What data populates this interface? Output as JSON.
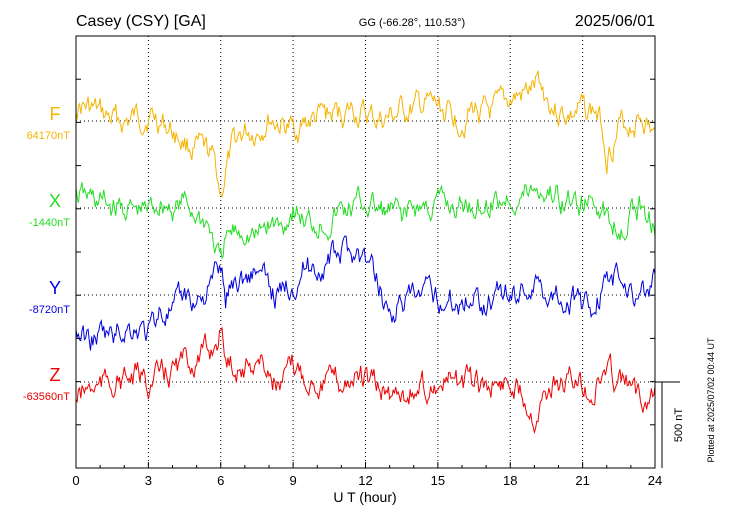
{
  "header": {
    "station": "Casey (CSY)  [GA]",
    "coords": "GG (-66.28°, 110.53°)",
    "date": "2025/06/01"
  },
  "footer": {
    "plotted": "Plotted at 2025/07/02 00:44 UT"
  },
  "scale_label": "500 nT",
  "chart_data": {
    "type": "line",
    "xlabel": "U T (hour)",
    "xlim": [
      0,
      24
    ],
    "xticks": [
      0,
      3,
      6,
      9,
      12,
      15,
      18,
      21,
      24
    ],
    "scale_nT": 500,
    "grid": true,
    "series": [
      {
        "name": "F",
        "baseline_label": "64170nT",
        "baseline_nT": 64170,
        "color": "#f5b400",
        "x": [
          0,
          0.5,
          1,
          1.5,
          2,
          2.5,
          3,
          3.5,
          4,
          4.5,
          5,
          5.5,
          5.8,
          6.0,
          6.2,
          6.5,
          6.8,
          7,
          7.5,
          8,
          8.5,
          9,
          9.5,
          10,
          10.5,
          11,
          11.5,
          12,
          12.5,
          13,
          13.5,
          14,
          14.5,
          15,
          15.5,
          16,
          16.5,
          17,
          17.5,
          18,
          18.5,
          19,
          19.2,
          19.5,
          20,
          20.5,
          21,
          21.5,
          21.8,
          22,
          22.5,
          23,
          23.5,
          24
        ],
        "values": [
          64270,
          64240,
          64200,
          64170,
          64160,
          64180,
          64210,
          64170,
          64110,
          64050,
          64000,
          63960,
          63900,
          63740,
          63880,
          64000,
          64080,
          64100,
          64120,
          64190,
          64150,
          64110,
          64160,
          64180,
          64200,
          64210,
          64230,
          64190,
          64170,
          64180,
          64220,
          64230,
          64250,
          64240,
          64200,
          64190,
          64240,
          64200,
          64210,
          64290,
          64310,
          64350,
          64390,
          64310,
          64230,
          64200,
          64230,
          64230,
          64150,
          63990,
          64130,
          64160,
          64210,
          64050
        ]
      },
      {
        "name": "X",
        "baseline_label": "-1440nT",
        "baseline_nT": -1440,
        "color": "#22dd22",
        "x": [
          0,
          0.5,
          1,
          1.5,
          2,
          2.5,
          3,
          3.5,
          4,
          4.5,
          5,
          5.5,
          6.0,
          6.2,
          6.5,
          7,
          7.5,
          8,
          8.5,
          9,
          9.5,
          10,
          10.5,
          11,
          11.5,
          12,
          12.5,
          13,
          13.5,
          14,
          14.5,
          15,
          15.5,
          16,
          16.5,
          17,
          17.5,
          18,
          18.5,
          19,
          19.5,
          20,
          20.5,
          21,
          21.5,
          21.8,
          22,
          22.5,
          23,
          23.5,
          24
        ],
        "values": [
          -1370,
          -1390,
          -1410,
          -1440,
          -1440,
          -1470,
          -1460,
          -1400,
          -1440,
          -1420,
          -1480,
          -1540,
          -1780,
          -1640,
          -1600,
          -1560,
          -1620,
          -1530,
          -1560,
          -1430,
          -1530,
          -1520,
          -1510,
          -1460,
          -1450,
          -1410,
          -1460,
          -1480,
          -1490,
          -1450,
          -1440,
          -1420,
          -1430,
          -1440,
          -1410,
          -1410,
          -1400,
          -1370,
          -1370,
          -1330,
          -1340,
          -1380,
          -1420,
          -1420,
          -1430,
          -1400,
          -1500,
          -1520,
          -1470,
          -1430,
          -1520
        ]
      },
      {
        "name": "Y",
        "baseline_label": "-8720nT",
        "baseline_nT": -8720,
        "color": "#0000dd",
        "x": [
          0,
          0.5,
          1,
          1.5,
          2,
          2.5,
          3,
          3.5,
          4,
          4.5,
          5,
          5.5,
          6.0,
          6.2,
          6.5,
          7,
          7.5,
          8,
          8.5,
          9,
          9.5,
          10,
          10.5,
          11,
          11.5,
          12,
          12.5,
          13,
          13.5,
          14,
          14.5,
          15,
          15.5,
          16,
          16.5,
          17,
          17.5,
          18,
          18.5,
          19,
          19.5,
          20,
          20.5,
          21,
          21.5,
          22,
          22.5,
          23,
          23.5,
          24
        ],
        "values": [
          -8940,
          -8980,
          -8960,
          -8970,
          -8910,
          -8900,
          -8950,
          -8800,
          -8840,
          -8740,
          -8750,
          -8680,
          -8560,
          -8750,
          -8640,
          -8620,
          -8560,
          -8700,
          -8720,
          -8620,
          -8550,
          -8560,
          -8520,
          -8480,
          -8450,
          -8520,
          -8640,
          -8820,
          -8760,
          -8760,
          -8740,
          -8730,
          -8750,
          -8760,
          -8710,
          -8750,
          -8700,
          -8720,
          -8680,
          -8650,
          -8700,
          -8700,
          -8750,
          -8800,
          -8760,
          -8650,
          -8620,
          -8690,
          -8710,
          -8640
        ]
      },
      {
        "name": "Z",
        "baseline_label": "-63560nT",
        "baseline_nT": -63560,
        "color": "#ee0000",
        "x": [
          0,
          0.5,
          1,
          1.5,
          2,
          2.5,
          3,
          3.5,
          4,
          4.5,
          5,
          5.5,
          6.0,
          6.2,
          6.5,
          7,
          7.5,
          8,
          8.5,
          9,
          9.5,
          10,
          10.5,
          11,
          11.5,
          12,
          12.5,
          13,
          13.5,
          14,
          14.5,
          15,
          15.5,
          16,
          16.5,
          17,
          17.5,
          18,
          18.5,
          19,
          19.5,
          20,
          20.5,
          21,
          21.5,
          22,
          22.5,
          23,
          23.5,
          24
        ],
        "values": [
          -63650,
          -63600,
          -63590,
          -63550,
          -63560,
          -63540,
          -63560,
          -63540,
          -63500,
          -63450,
          -63420,
          -63400,
          -63260,
          -63420,
          -63450,
          -63480,
          -63420,
          -63500,
          -63600,
          -63480,
          -63520,
          -63540,
          -63550,
          -63570,
          -63520,
          -63560,
          -63600,
          -63640,
          -63600,
          -63610,
          -63590,
          -63570,
          -63580,
          -63570,
          -63590,
          -63580,
          -63560,
          -63560,
          -63600,
          -63720,
          -63600,
          -63580,
          -63560,
          -63580,
          -63620,
          -63480,
          -63560,
          -63600,
          -63650,
          -63580
        ]
      }
    ]
  }
}
